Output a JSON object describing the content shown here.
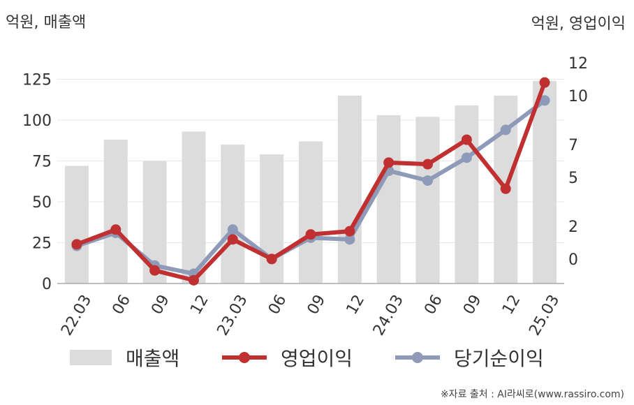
{
  "header": {
    "left_unit": "억원, 매출액",
    "right_unit": "억원, 영업이익"
  },
  "footer": {
    "source": "※자료 출처 : AI라씨로(www.rassiro.com)"
  },
  "legend": {
    "revenue": "매출액",
    "operating_profit": "영업이익",
    "net_income": "당기순이익"
  },
  "colors": {
    "bars": "#dcdcdc",
    "operating_profit": "#c03030",
    "net_income": "#8e9ab8",
    "grid": "#e8e8e8",
    "axis": "#aaaaaa"
  },
  "chart_data": {
    "type": "bar",
    "categories": [
      "22.03",
      "06",
      "09",
      "12",
      "23.03",
      "06",
      "09",
      "12",
      "24.03",
      "06",
      "09",
      "12",
      "25.03"
    ],
    "y_left": {
      "ticks": [
        0,
        25,
        50,
        75,
        100,
        125
      ],
      "lim": [
        0,
        150
      ]
    },
    "y_right": {
      "ticks": [
        0,
        2,
        5,
        7,
        10,
        12
      ],
      "lim": [
        -1.5,
        13.5
      ]
    },
    "grid": true,
    "legend_position": "bottom",
    "series": [
      {
        "name": "매출액",
        "type": "bar",
        "axis": "left",
        "values": [
          72,
          88,
          75,
          93,
          85,
          79,
          87,
          115,
          103,
          102,
          109,
          115,
          124
        ]
      },
      {
        "name": "영업이익",
        "type": "line",
        "axis": "right",
        "values": [
          0.9,
          1.8,
          -0.7,
          -1.3,
          1.2,
          0.0,
          1.5,
          1.7,
          5.9,
          5.8,
          7.3,
          4.3,
          10.8
        ]
      },
      {
        "name": "당기순이익",
        "type": "line",
        "axis": "right",
        "values": [
          0.8,
          1.6,
          -0.4,
          -0.9,
          1.8,
          0.0,
          1.3,
          1.2,
          5.4,
          4.8,
          6.2,
          7.9,
          9.7
        ]
      }
    ]
  }
}
